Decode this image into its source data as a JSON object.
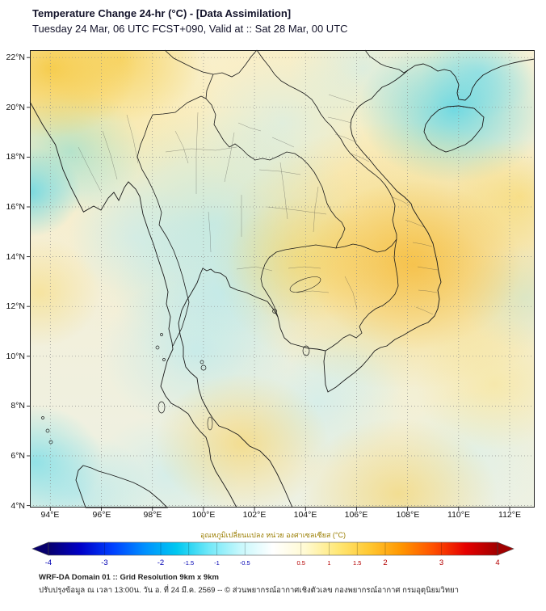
{
  "header": {
    "title": "Temperature Change 24-hr (°C) - [Data Assimilation]",
    "subtitle": "Tuesday 24 Mar, 06 UTC FCST+090, Valid at :: Sat 28 Mar, 00 UTC"
  },
  "map": {
    "lat_labels": [
      "22°N",
      "20°N",
      "18°N",
      "16°N",
      "14°N",
      "12°N",
      "10°N",
      "8°N",
      "6°N",
      "4°N"
    ],
    "lon_labels": [
      "94°E",
      "96°E",
      "98°E",
      "100°E",
      "102°E",
      "104°E",
      "106°E",
      "108°E",
      "110°E",
      "112°E"
    ]
  },
  "colorbar": {
    "label": "อุณหภูมิเปลี่ยนแปลง หน่วย องศาเซลเซียส (°C)",
    "min": -4,
    "max": 4,
    "ticks": [
      {
        "value": -4,
        "label": "-4"
      },
      {
        "value": -3,
        "label": "-3"
      },
      {
        "value": -2,
        "label": "-2"
      },
      {
        "value": -1.5,
        "label": "-1.5"
      },
      {
        "value": -1,
        "label": "-1"
      },
      {
        "value": -0.5,
        "label": "-0.5"
      },
      {
        "value": 0.5,
        "label": "0.5"
      },
      {
        "value": 1,
        "label": "1"
      },
      {
        "value": 1.5,
        "label": "1.5"
      },
      {
        "value": 2,
        "label": "2"
      },
      {
        "value": 3,
        "label": "3"
      },
      {
        "value": 4,
        "label": "4"
      }
    ],
    "colors": [
      "#08006d",
      "#0000c8",
      "#0040ff",
      "#0090ff",
      "#00c8f0",
      "#70e8f8",
      "#c8f8fc",
      "#ffffff",
      "#fffad2",
      "#ffe878",
      "#ffc832",
      "#ff9600",
      "#ff5000",
      "#e60000",
      "#a00000"
    ],
    "negative_label_color": "#0000b4",
    "positive_label_color": "#b40000"
  },
  "footer": {
    "line1": "WRF-DA Domain 01 :: Grid Resolution 9km x 9km",
    "line2": "ปรับปรุงข้อมูล ณ เวลา 13:00น. วัน อ. ที่ 24 มี.ค. 2569 -- © ส่วนพยากรณ์อากาศเชิงตัวเลข กองพยากรณ์อากาศ กรมอุตุนิยมวิทยา"
  }
}
